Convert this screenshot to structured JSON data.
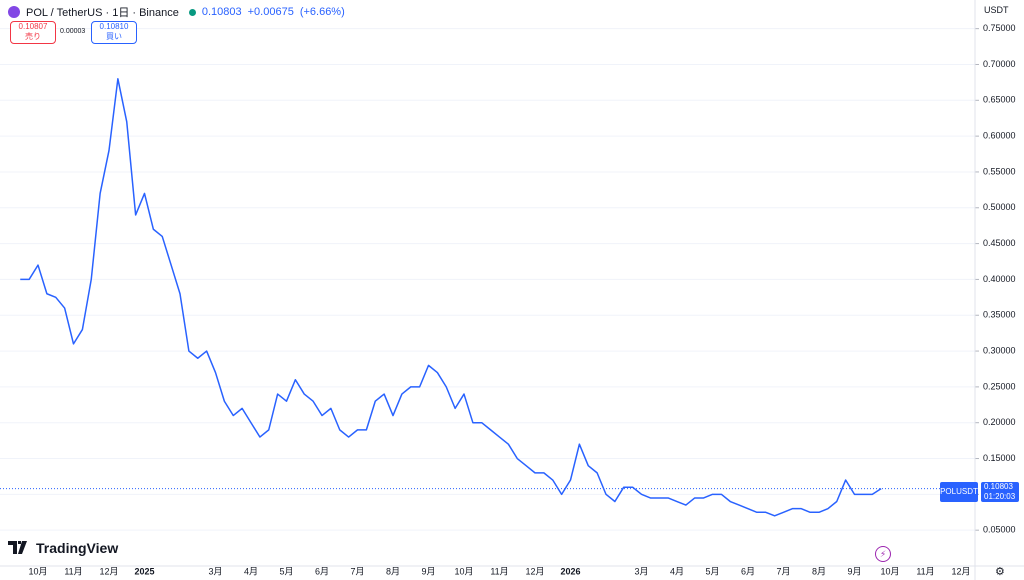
{
  "chart_data": {
    "type": "line",
    "symbol": "POL / TetherUS · 1日 · Binance",
    "price": 0.10803,
    "change": "+0.00675",
    "change_pct": "(+6.66%)",
    "sell": {
      "price": 0.10807,
      "label": "売り"
    },
    "spread": 3e-05,
    "buy": {
      "price": "0.10810",
      "label": "買い"
    },
    "currency": "USDT",
    "countdown": "01:20:03",
    "brand": "TradingView",
    "categories": [
      null,
      null,
      "10月",
      null,
      null,
      null,
      "11月",
      null,
      null,
      null,
      "12月",
      null,
      null,
      null,
      "2025",
      null,
      null,
      null,
      null,
      null,
      null,
      null,
      "3月",
      null,
      null,
      null,
      "4月",
      null,
      null,
      null,
      "5月",
      null,
      null,
      null,
      "6月",
      null,
      null,
      null,
      "7月",
      null,
      null,
      null,
      "8月",
      null,
      null,
      null,
      "9月",
      null,
      null,
      null,
      "10月",
      null,
      null,
      null,
      "11月",
      null,
      null,
      null,
      "12月",
      null,
      null,
      null,
      "2026",
      null,
      null,
      null,
      null,
      null,
      null,
      null,
      "3月",
      null,
      null,
      null,
      "4月",
      null,
      null,
      null,
      "5月",
      null,
      null,
      null,
      "6月",
      null,
      null,
      null,
      "7月",
      null,
      null,
      null,
      "8月",
      null,
      null,
      null,
      "9月",
      null,
      null,
      null,
      "10月",
      null,
      null,
      null,
      "11月",
      null,
      null,
      null,
      "12月",
      null
    ],
    "series": [
      {
        "name": "POLUSDT",
        "color": "#2962ff",
        "values": [
          0.4,
          0.4,
          0.42,
          0.38,
          0.375,
          0.36,
          0.31,
          0.33,
          0.4,
          0.52,
          0.58,
          0.68,
          0.62,
          0.49,
          0.52,
          0.47,
          0.46,
          0.42,
          0.38,
          0.3,
          0.29,
          0.3,
          0.27,
          0.23,
          0.21,
          0.22,
          0.2,
          0.18,
          0.19,
          0.24,
          0.23,
          0.26,
          0.24,
          0.23,
          0.21,
          0.22,
          0.19,
          0.18,
          0.19,
          0.19,
          0.23,
          0.24,
          0.21,
          0.24,
          0.25,
          0.25,
          0.28,
          0.27,
          0.25,
          0.22,
          0.24,
          0.2,
          0.2,
          0.19,
          0.18,
          0.17,
          0.15,
          0.14,
          0.13,
          0.13,
          0.12,
          0.1,
          0.12,
          0.17,
          0.14,
          0.13,
          0.1,
          0.09,
          0.11,
          0.11,
          0.1,
          0.095,
          0.095,
          0.095,
          0.09,
          0.085,
          0.095,
          0.095,
          0.1,
          0.1,
          0.09,
          0.085,
          0.08,
          0.075,
          0.075,
          0.07,
          0.075,
          0.08,
          0.08,
          0.075,
          0.075,
          0.08,
          0.09,
          0.12,
          0.1,
          0.1,
          0.1,
          0.108,
          null,
          null,
          null,
          null,
          null,
          null,
          null,
          null,
          null,
          null
        ]
      }
    ],
    "ylim": [
      0,
      0.79
    ],
    "yticks": [
      {
        "value": 0.05,
        "label": "0.05000"
      },
      {
        "value": 0.1,
        "label": "0.10000"
      },
      {
        "value": 0.15,
        "label": "0.15000"
      },
      {
        "value": 0.2,
        "label": "0.20000"
      },
      {
        "value": 0.25,
        "label": "0.25000"
      },
      {
        "value": 0.3,
        "label": "0.30000"
      },
      {
        "value": 0.35,
        "label": "0.35000"
      },
      {
        "value": 0.4,
        "label": "0.40000"
      },
      {
        "value": 0.45,
        "label": "0.45000"
      },
      {
        "value": 0.5,
        "label": "0.50000"
      },
      {
        "value": 0.55,
        "label": "0.55000"
      },
      {
        "value": 0.6,
        "label": "0.60000"
      },
      {
        "value": 0.65,
        "label": "0.65000"
      },
      {
        "value": 0.7,
        "label": "0.70000"
      },
      {
        "value": 0.75,
        "label": "0.75000"
      }
    ],
    "grid": true
  }
}
